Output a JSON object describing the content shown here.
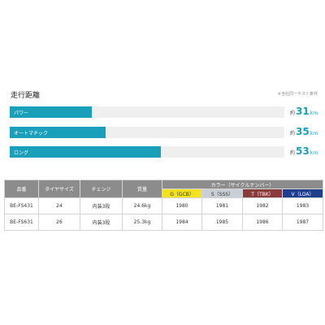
{
  "section": {
    "title": "走行距離",
    "note": "※当社同一テスト条件"
  },
  "ranges": [
    {
      "label": "パワー",
      "prefix": "約",
      "value": "31",
      "unit": "km",
      "fraction": 0.3
    },
    {
      "label": "オートマチック",
      "prefix": "約",
      "value": "35",
      "unit": "km",
      "fraction": 0.35
    },
    {
      "label": "ロング",
      "prefix": "約",
      "value": "53",
      "unit": "km",
      "fraction": 0.55
    }
  ],
  "table": {
    "headers": {
      "model": "品番",
      "tire": "タイヤサイズ",
      "change": "チェンジ",
      "weight": "質量",
      "color_group": "カラー（サイクルナンバー）"
    },
    "colors": [
      {
        "label": "G（GCB）",
        "bg": "#f2e21f",
        "fg": "#333333"
      },
      {
        "label": "S（SSS）",
        "bg": "#c8cfd6",
        "fg": "#333333"
      },
      {
        "label": "T（TBK）",
        "bg": "#8a3c3c",
        "fg": "#ffffff"
      },
      {
        "label": "V（LOA）",
        "bg": "#1f3f8c",
        "fg": "#ffffff"
      }
    ],
    "rows": [
      {
        "model": "BE-FS431",
        "tire": "24",
        "change": "内装3段",
        "weight": "24.6kg",
        "c1": "1980",
        "c2": "1981",
        "c3": "1982",
        "c4": "1983"
      },
      {
        "model": "BE-FS631",
        "tire": "26",
        "change": "内装3段",
        "weight": "25.3kg",
        "c1": "1984",
        "c2": "1985",
        "c3": "1986",
        "c4": "1987"
      }
    ]
  },
  "accent": "#1a9fba",
  "header_bg": "#8c8c8c"
}
